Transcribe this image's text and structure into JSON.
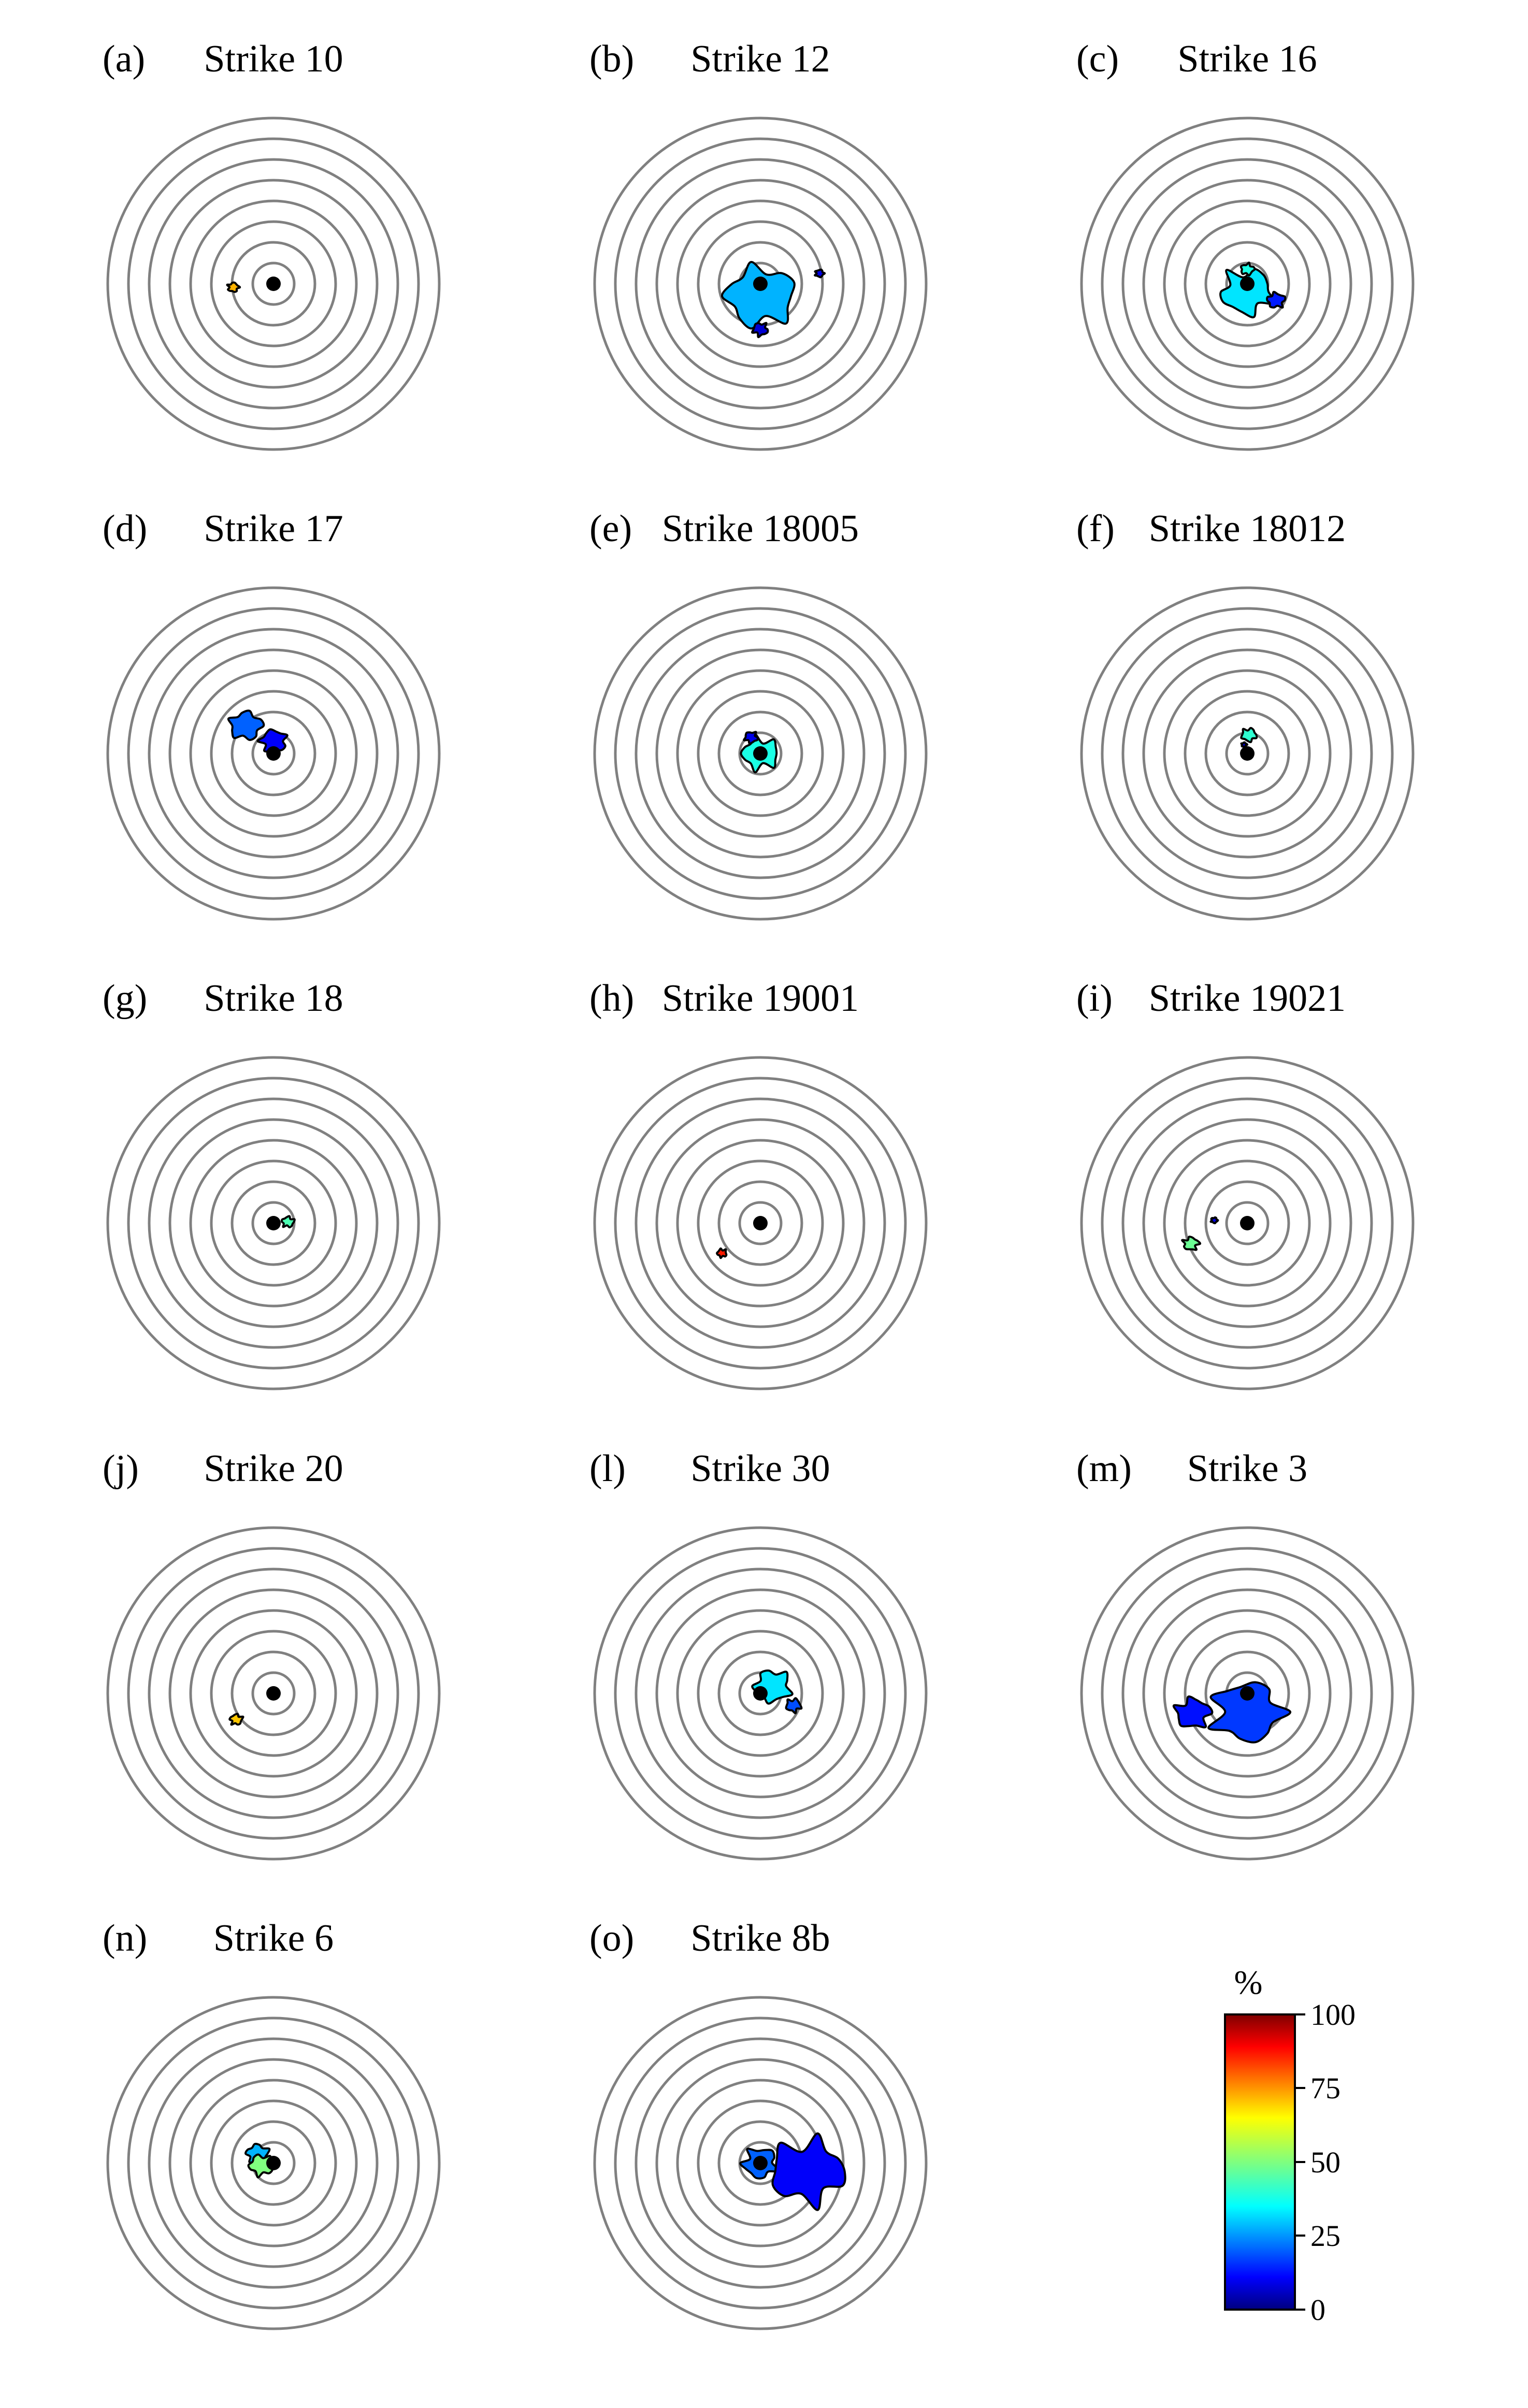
{
  "figure": {
    "colorbar": {
      "unit": "%",
      "ticks": [
        "100",
        "75",
        "50",
        "25",
        "0"
      ],
      "range": [
        0,
        100
      ],
      "colormap": "jet"
    }
  },
  "chart_data": [
    {
      "type": "heatmap",
      "letter": "(a)",
      "title": "Strike 10",
      "ring_count": 8,
      "regions": [
        {
          "percent": 70,
          "angle_deg": 185,
          "radius_ring": 1.95,
          "size_ring": 0.25
        }
      ]
    },
    {
      "type": "heatmap",
      "letter": "(b)",
      "title": "Strike 12",
      "ring_count": 8,
      "regions": [
        {
          "percent": 30,
          "angle_deg": 270,
          "radius_ring": 0.6,
          "size_ring": 1.6
        },
        {
          "percent": 8,
          "angle_deg": 270,
          "radius_ring": 2.2,
          "size_ring": 0.35
        },
        {
          "percent": 10,
          "angle_deg": 10,
          "radius_ring": 2.9,
          "size_ring": 0.2
        }
      ]
    },
    {
      "type": "heatmap",
      "letter": "(c)",
      "title": "Strike 16",
      "ring_count": 8,
      "regions": [
        {
          "percent": 35,
          "angle_deg": 270,
          "radius_ring": 0.4,
          "size_ring": 1.2
        },
        {
          "percent": 40,
          "angle_deg": 90,
          "radius_ring": 0.7,
          "size_ring": 0.3
        },
        {
          "percent": 15,
          "angle_deg": 330,
          "radius_ring": 1.6,
          "size_ring": 0.4
        }
      ]
    },
    {
      "type": "heatmap",
      "letter": "(d)",
      "title": "Strike 17",
      "ring_count": 8,
      "regions": [
        {
          "percent": 22,
          "angle_deg": 135,
          "radius_ring": 1.9,
          "size_ring": 0.75
        },
        {
          "percent": 12,
          "angle_deg": 90,
          "radius_ring": 0.6,
          "size_ring": 0.6
        }
      ]
    },
    {
      "type": "heatmap",
      "letter": "(e)",
      "title": "Strike 18005",
      "ring_count": 8,
      "regions": [
        {
          "percent": 40,
          "angle_deg": 0,
          "radius_ring": 0.0,
          "size_ring": 0.85
        },
        {
          "percent": 10,
          "angle_deg": 120,
          "radius_ring": 0.9,
          "size_ring": 0.3
        }
      ]
    },
    {
      "type": "heatmap",
      "letter": "(f)",
      "title": "Strike 18012",
      "ring_count": 8,
      "regions": [
        {
          "percent": 42,
          "angle_deg": 85,
          "radius_ring": 0.9,
          "size_ring": 0.35
        },
        {
          "percent": 8,
          "angle_deg": 110,
          "radius_ring": 0.45,
          "size_ring": 0.12
        }
      ]
    },
    {
      "type": "heatmap",
      "letter": "(g)",
      "title": "Strike 18",
      "ring_count": 8,
      "regions": [
        {
          "percent": 45,
          "angle_deg": 5,
          "radius_ring": 0.7,
          "size_ring": 0.28
        }
      ]
    },
    {
      "type": "heatmap",
      "letter": "(h)",
      "title": "Strike 19001",
      "ring_count": 8,
      "regions": [
        {
          "percent": 85,
          "angle_deg": 218,
          "radius_ring": 2.35,
          "size_ring": 0.22
        }
      ]
    },
    {
      "type": "heatmap",
      "letter": "(i)",
      "title": "Strike 19021",
      "ring_count": 8,
      "regions": [
        {
          "percent": 10,
          "angle_deg": 175,
          "radius_ring": 1.6,
          "size_ring": 0.15
        },
        {
          "percent": 48,
          "angle_deg": 200,
          "radius_ring": 2.9,
          "size_ring": 0.35
        }
      ]
    },
    {
      "type": "heatmap",
      "letter": "(j)",
      "title": "Strike 20",
      "ring_count": 8,
      "regions": [
        {
          "percent": 68,
          "angle_deg": 215,
          "radius_ring": 2.2,
          "size_ring": 0.28
        }
      ]
    },
    {
      "type": "heatmap",
      "letter": "(l)",
      "title": "Strike 30",
      "ring_count": 8,
      "regions": [
        {
          "percent": 35,
          "angle_deg": 30,
          "radius_ring": 0.7,
          "size_ring": 0.85
        },
        {
          "percent": 20,
          "angle_deg": 340,
          "radius_ring": 1.7,
          "size_ring": 0.35
        }
      ]
    },
    {
      "type": "heatmap",
      "letter": "(m)",
      "title": "Strike 3",
      "ring_count": 8,
      "regions": [
        {
          "percent": 18,
          "angle_deg": 270,
          "radius_ring": 0.9,
          "size_ring": 1.6
        },
        {
          "percent": 14,
          "angle_deg": 200,
          "radius_ring": 2.8,
          "size_ring": 0.8
        }
      ]
    },
    {
      "type": "heatmap",
      "letter": "(n)",
      "title": "Strike 6",
      "ring_count": 8,
      "regions": [
        {
          "percent": 30,
          "angle_deg": 150,
          "radius_ring": 0.9,
          "size_ring": 0.5
        },
        {
          "percent": 50,
          "angle_deg": 190,
          "radius_ring": 0.6,
          "size_ring": 0.55
        }
      ]
    },
    {
      "type": "heatmap",
      "letter": "(o)",
      "title": "Strike 8b",
      "ring_count": 8,
      "regions": [
        {
          "percent": 22,
          "angle_deg": 180,
          "radius_ring": 0.0,
          "size_ring": 0.8
        },
        {
          "percent": 12,
          "angle_deg": 350,
          "radius_ring": 2.3,
          "size_ring": 1.7
        }
      ]
    }
  ]
}
